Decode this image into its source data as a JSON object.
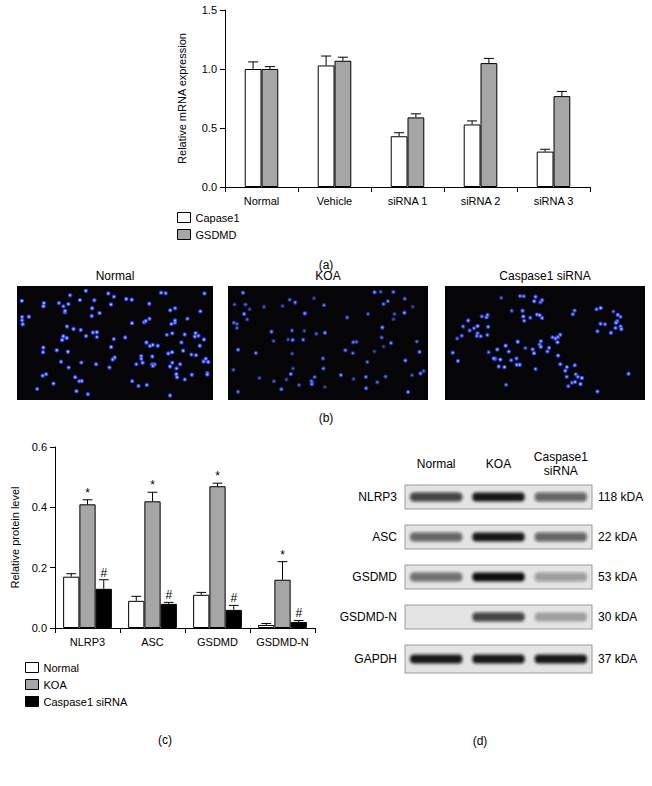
{
  "chart_data": [
    {
      "type": "bar",
      "caption": "(a)",
      "y_label": "Relative mRNA expression",
      "categories": [
        "Normal",
        "Vehicle",
        "siRNA 1",
        "siRNA 2",
        "siRNA 3"
      ],
      "series": [
        {
          "name": "Capase1",
          "color": "#ffffff",
          "values": [
            1.0,
            1.03,
            0.43,
            0.53,
            0.3
          ],
          "errors": [
            0.06,
            0.08,
            0.03,
            0.03,
            0.02
          ]
        },
        {
          "name": "GSDMD",
          "color": "#a6a6a6",
          "values": [
            1.0,
            1.07,
            0.59,
            1.05,
            0.77
          ],
          "errors": [
            0.02,
            0.03,
            0.03,
            0.04,
            0.04
          ]
        }
      ],
      "ylim": [
        0,
        1.5
      ],
      "yticks": [
        {
          "value": 0,
          "label": "0.0"
        },
        {
          "value": 0.5,
          "label": "0.5"
        },
        {
          "value": 1,
          "label": "1.0"
        },
        {
          "value": 1.5,
          "label": "1.5"
        }
      ],
      "grid": false,
      "legend": "lower left"
    },
    {
      "type": "bar",
      "caption": "(c)",
      "y_label": "Relative protein level",
      "categories": [
        "NLRP3",
        "ASC",
        "GSDMD",
        "GSDMD-N"
      ],
      "series": [
        {
          "name": "Normal",
          "color": "#ffffff",
          "values": [
            0.17,
            0.09,
            0.11,
            0.01
          ],
          "errors": [
            0.01,
            0.015,
            0.008,
            0.005
          ]
        },
        {
          "name": "KOA",
          "color": "#a6a6a6",
          "values": [
            0.41,
            0.42,
            0.47,
            0.16
          ],
          "errors": [
            0.015,
            0.03,
            0.01,
            0.06
          ],
          "annotations": [
            "*",
            "*",
            "*",
            "*"
          ]
        },
        {
          "name": "Caspase1 siRNA",
          "color": "#000000",
          "values": [
            0.13,
            0.08,
            0.06,
            0.02
          ],
          "errors": [
            0.03,
            0.005,
            0.015,
            0.005
          ],
          "annotations": [
            "#",
            "#",
            "#",
            "#"
          ]
        }
      ],
      "ylim": [
        0,
        0.6
      ],
      "yticks": [
        {
          "value": 0,
          "label": "0.0"
        },
        {
          "value": 0.2,
          "label": "0.2"
        },
        {
          "value": 0.4,
          "label": "0.4"
        },
        {
          "value": 0.6,
          "label": "0.6"
        }
      ],
      "grid": false,
      "legend": "lower left"
    }
  ],
  "images": {
    "caption": "(b)",
    "titles": [
      "Normal",
      "KOA",
      "Caspase1 siRNA"
    ]
  },
  "blot": {
    "caption": "(d)",
    "columns": [
      "Normal",
      "KOA",
      "Caspase1 siRNA"
    ],
    "rows": [
      {
        "name": "NLRP3",
        "size": "118 kDA",
        "intensity": [
          0.75,
          0.95,
          0.6
        ]
      },
      {
        "name": "ASC",
        "size": "22 kDA",
        "intensity": [
          0.6,
          0.95,
          0.6
        ]
      },
      {
        "name": "GSDMD",
        "size": "53 kDA",
        "intensity": [
          0.55,
          1.0,
          0.35
        ]
      },
      {
        "name": "GSDMD-N",
        "size": "30 kDA",
        "intensity": [
          0,
          0.75,
          0.3
        ]
      },
      {
        "name": "GAPDH",
        "size": "37 kDA",
        "intensity": [
          0.95,
          0.95,
          0.95
        ]
      }
    ]
  }
}
